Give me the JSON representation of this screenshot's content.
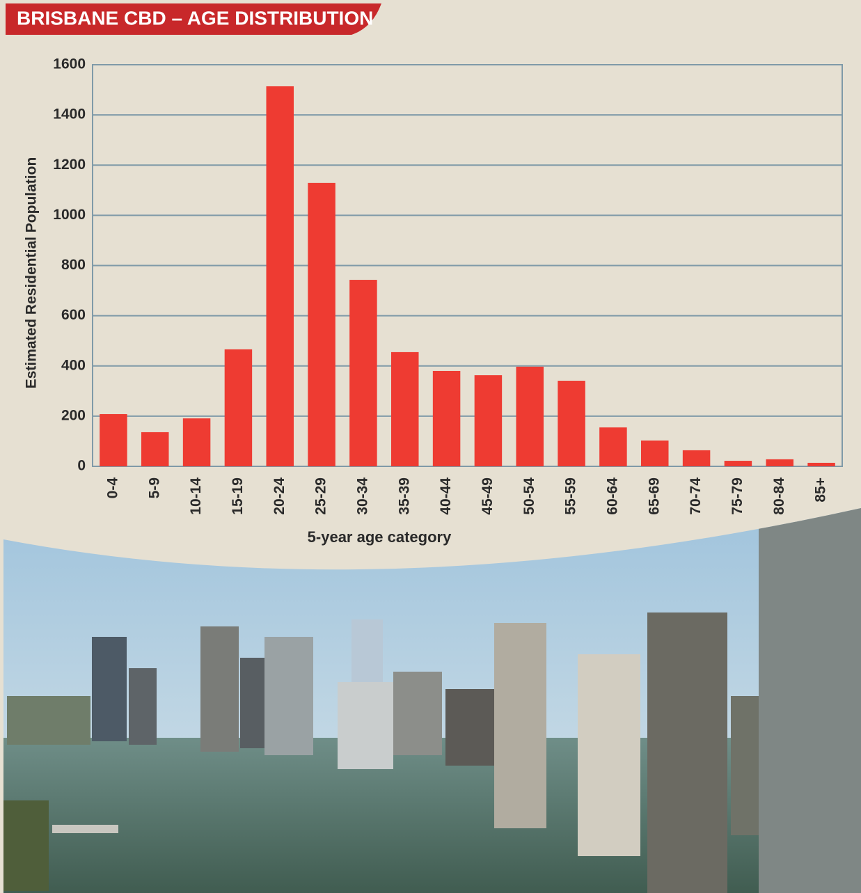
{
  "chart_data": {
    "type": "bar",
    "title": "BRISBANE CBD – AGE DISTRIBUTION",
    "y_label": "Estimated Residential Population",
    "x_label": "5-year age category",
    "categories": [
      "0-4",
      "5-9",
      "10-14",
      "15-19",
      "20-24",
      "25-29",
      "30-34",
      "35-39",
      "40-44",
      "45-49",
      "50-54",
      "55-59",
      "60-64",
      "65-69",
      "70-74",
      "75-79",
      "80-84",
      "85+"
    ],
    "values": [
      208,
      136,
      191,
      466,
      1514,
      1129,
      743,
      455,
      380,
      363,
      397,
      341,
      155,
      103,
      64,
      22,
      28,
      14
    ],
    "color": "#ee3b32",
    "ylim": [
      0,
      1600
    ],
    "yticks": [
      0,
      200,
      400,
      600,
      800,
      1000,
      1200,
      1400,
      1600
    ],
    "grid": true
  }
}
